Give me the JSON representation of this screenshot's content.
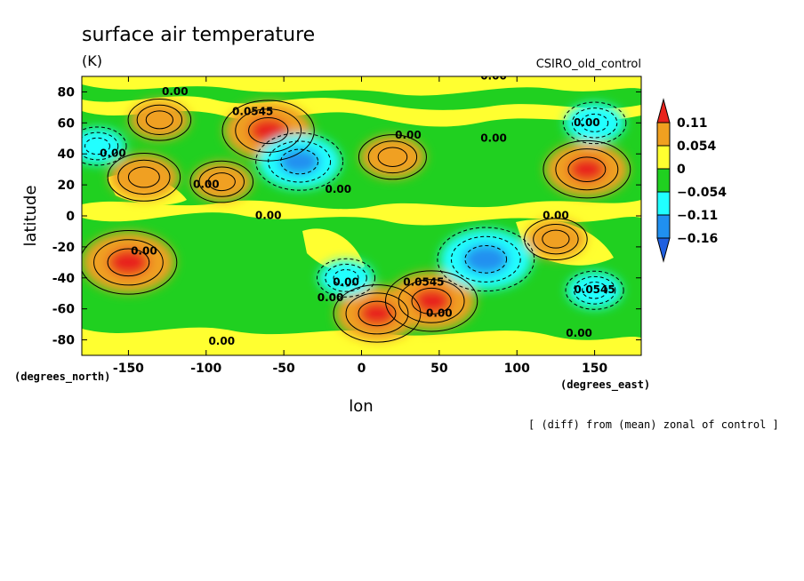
{
  "chart_data": {
    "type": "heatmap",
    "title": "surface air temperature",
    "units": "(K)",
    "source_label": "CSIRO_old_control",
    "xlabel": "lon",
    "ylabel": "latitude",
    "x_unit_label": "(degrees_east)",
    "y_unit_label": "(degrees_north)",
    "note": "[ (diff) from (mean) zonal of control ]",
    "xlim": [
      -180,
      180
    ],
    "ylim": [
      -90,
      90
    ],
    "xticks": [
      {
        "value": -150,
        "label": "-150"
      },
      {
        "value": -100,
        "label": "-100"
      },
      {
        "value": -50,
        "label": "-50"
      },
      {
        "value": 0,
        "label": "0"
      },
      {
        "value": 50,
        "label": "50"
      },
      {
        "value": 100,
        "label": "100"
      },
      {
        "value": 150,
        "label": "150"
      }
    ],
    "yticks": [
      {
        "value": 80,
        "label": "80"
      },
      {
        "value": 60,
        "label": "60"
      },
      {
        "value": 40,
        "label": "40"
      },
      {
        "value": 20,
        "label": "20"
      },
      {
        "value": 0,
        "label": "0"
      },
      {
        "value": -20,
        "label": "-20"
      },
      {
        "value": -40,
        "label": "-40"
      },
      {
        "value": -60,
        "label": "-60"
      },
      {
        "value": -80,
        "label": "-80"
      }
    ],
    "colorbar": {
      "levels": [
        "0.11",
        "0.054",
        "0",
        "−0.054",
        "−0.11",
        "−0.16"
      ],
      "colors": [
        "#e8231d",
        "#f0a020",
        "#ffff30",
        "#20d020",
        "#20ffff",
        "#2090f0",
        "#2060e0"
      ]
    },
    "anomalies": [
      {
        "lon": -150,
        "lat": -30,
        "value": 0.13
      },
      {
        "lon": -140,
        "lat": 25,
        "value": 0.08
      },
      {
        "lon": -130,
        "lat": 62,
        "value": 0.06
      },
      {
        "lon": -90,
        "lat": 22,
        "value": 0.06
      },
      {
        "lon": -60,
        "lat": 55,
        "value": 0.12
      },
      {
        "lon": -40,
        "lat": 35,
        "value": -0.11
      },
      {
        "lon": 20,
        "lat": 38,
        "value": 0.07
      },
      {
        "lon": 45,
        "lat": -55,
        "value": 0.12
      },
      {
        "lon": 10,
        "lat": -63,
        "value": 0.11
      },
      {
        "lon": 80,
        "lat": -28,
        "value": -0.13
      },
      {
        "lon": 145,
        "lat": 30,
        "value": 0.11
      },
      {
        "lon": 150,
        "lat": 60,
        "value": -0.06
      },
      {
        "lon": 125,
        "lat": -15,
        "value": 0.06
      },
      {
        "lon": -170,
        "lat": 45,
        "value": -0.05
      },
      {
        "lon": -10,
        "lat": -40,
        "value": -0.05
      },
      {
        "lon": 150,
        "lat": -48,
        "value": -0.05
      }
    ],
    "contour_labels": [
      {
        "lon": -120,
        "lat": 78,
        "text": "0.00"
      },
      {
        "lon": -70,
        "lat": 65,
        "text": "0.0545"
      },
      {
        "lon": 30,
        "lat": 50,
        "text": "0.00"
      },
      {
        "lon": 85,
        "lat": 48,
        "text": "0.00"
      },
      {
        "lon": 85,
        "lat": 88,
        "text": "0.00"
      },
      {
        "lon": 145,
        "lat": 58,
        "text": "0.00"
      },
      {
        "lon": -160,
        "lat": 38,
        "text": "0.00"
      },
      {
        "lon": -100,
        "lat": 18,
        "text": "0.00"
      },
      {
        "lon": -15,
        "lat": 15,
        "text": "0.00"
      },
      {
        "lon": -60,
        "lat": -2,
        "text": "0.00"
      },
      {
        "lon": 125,
        "lat": -2,
        "text": "0.00"
      },
      {
        "lon": -140,
        "lat": -25,
        "text": "0.00"
      },
      {
        "lon": -10,
        "lat": -45,
        "text": "0.00"
      },
      {
        "lon": 40,
        "lat": -45,
        "text": "0.0545"
      },
      {
        "lon": -20,
        "lat": -55,
        "text": "0.00"
      },
      {
        "lon": 50,
        "lat": -65,
        "text": "0.00"
      },
      {
        "lon": 150,
        "lat": -50,
        "text": "0.0545"
      },
      {
        "lon": 140,
        "lat": -78,
        "text": "0.00"
      },
      {
        "lon": -90,
        "lat": -83,
        "text": "0.00"
      }
    ]
  }
}
